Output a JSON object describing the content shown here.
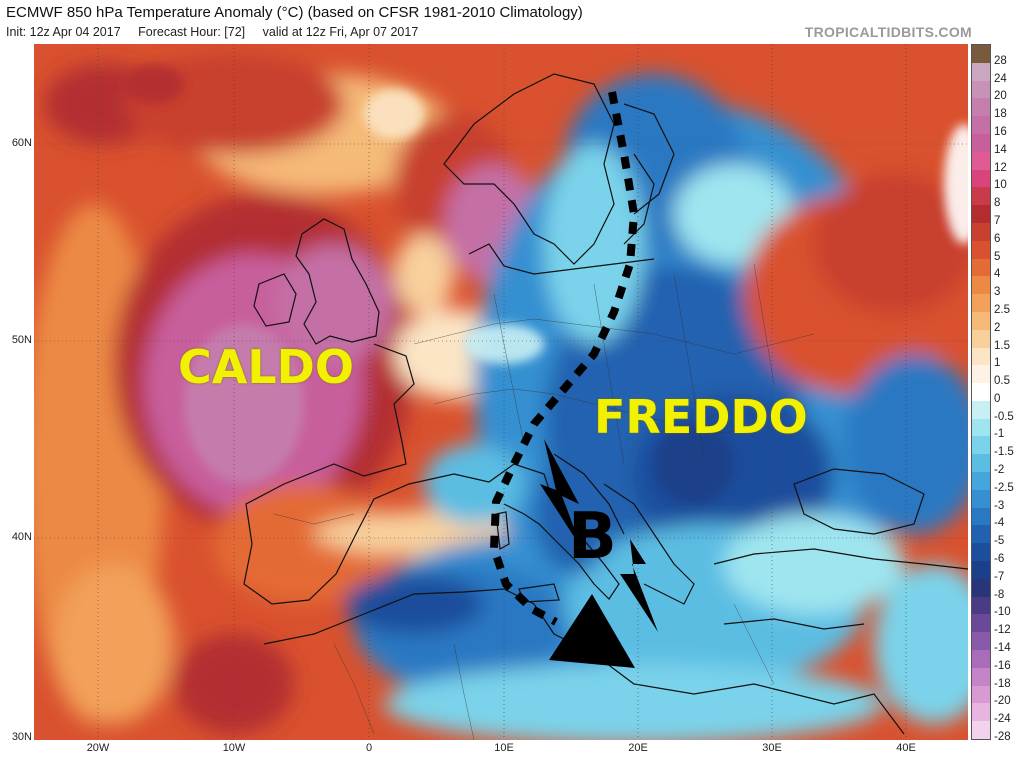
{
  "header": {
    "title": "ECMWF 850 hPa Temperature Anomaly (°C) (based on CFSR 1981-2010 Climatology)",
    "init": "Init: 12z Apr 04 2017",
    "forecast_hour": "Forecast Hour: [72]",
    "valid": "valid at 12z Fri, Apr 07 2017",
    "brand": "TROPICALTIDBITS.COM"
  },
  "map": {
    "lat_labels": [
      "60N",
      "50N",
      "40N",
      "30N"
    ],
    "lon_labels": [
      "20W",
      "10W",
      "0",
      "10E",
      "20E",
      "30E",
      "40E"
    ],
    "annotations": {
      "warm_label": "CALDO",
      "cold_label": "FREDDO",
      "low_label": "B"
    }
  },
  "colorbar": {
    "labels": [
      "28",
      "24",
      "20",
      "18",
      "16",
      "14",
      "12",
      "10",
      "8",
      "7",
      "6",
      "5",
      "4",
      "3",
      "2.5",
      "2",
      "1.5",
      "1",
      "0.5",
      "0",
      "-0.5",
      "-1",
      "-1.5",
      "-2",
      "-2.5",
      "-3",
      "-4",
      "-5",
      "-6",
      "-7",
      "-8",
      "-10",
      "-12",
      "-14",
      "-16",
      "-18",
      "-20",
      "-24",
      "-28"
    ],
    "colors": [
      "#7a5a3c",
      "#caa6bf",
      "#c792b6",
      "#c57fae",
      "#c46fa6",
      "#c85f9d",
      "#e05b95",
      "#d9457a",
      "#c93a4a",
      "#b32d30",
      "#c8402f",
      "#d9512e",
      "#e46b35",
      "#ec8a45",
      "#f2a05a",
      "#f5b978",
      "#f8d09c",
      "#fbe5c4",
      "#fdf2e4",
      "#ffffff",
      "#c8f0f4",
      "#9ee5ef",
      "#7ad3ea",
      "#5cbde3",
      "#45a6db",
      "#3490d1",
      "#2a78c2",
      "#2162b0",
      "#1c4e9c",
      "#1b3f88",
      "#2a3478",
      "#4a3b86",
      "#6a4a98",
      "#8a5aaa",
      "#a96cba",
      "#c684c8",
      "#d99ad4",
      "#e8b4e0",
      "#f3d2ec"
    ]
  }
}
